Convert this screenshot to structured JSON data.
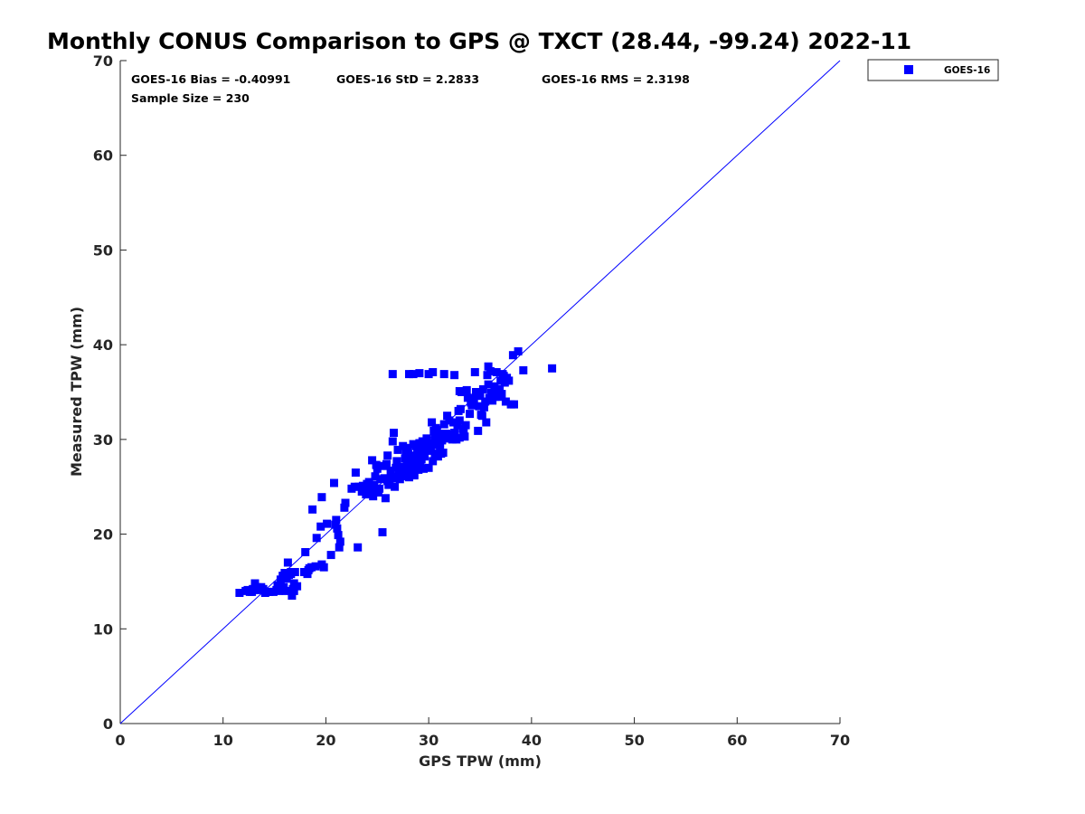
{
  "chart_data": {
    "type": "scatter",
    "title": "Monthly CONUS Comparison to GPS @ TXCT (28.44, -99.24) 2022-11",
    "xlabel": "GPS TPW (mm)",
    "ylabel": "Measured TPW (mm)",
    "xlim": [
      0,
      70
    ],
    "ylim": [
      0,
      70
    ],
    "xticks": [
      0,
      10,
      20,
      30,
      40,
      50,
      60,
      70
    ],
    "yticks": [
      0,
      10,
      20,
      30,
      40,
      50,
      60,
      70
    ],
    "grid": false,
    "legend_position": "outside-top-right",
    "colors": {
      "series": "#0000ff",
      "axis": "#262626"
    },
    "stats": {
      "bias": "GOES-16 Bias = -0.40991",
      "std": "GOES-16 StD = 2.2833",
      "rms": "GOES-16 RMS = 2.3198",
      "sample": "Sample Size = 230"
    },
    "reference_line": {
      "label": "",
      "x": [
        0,
        70
      ],
      "y": [
        0,
        70
      ]
    },
    "series": [
      {
        "name": "GOES-16",
        "marker": "square",
        "points": [
          [
            11.6,
            13.8
          ],
          [
            12.2,
            14.0
          ],
          [
            12.6,
            13.9
          ],
          [
            12.9,
            14.2
          ],
          [
            13.1,
            14.8
          ],
          [
            13.3,
            14.4
          ],
          [
            13.5,
            14.1
          ],
          [
            12.8,
            13.9
          ],
          [
            14.5,
            13.9
          ],
          [
            14.9,
            13.9
          ],
          [
            15.2,
            14.1
          ],
          [
            15.4,
            14.0
          ],
          [
            15.6,
            14.2
          ],
          [
            15.8,
            15.6
          ],
          [
            16.0,
            15.9
          ],
          [
            16.2,
            15.3
          ],
          [
            16.4,
            15.7
          ],
          [
            16.6,
            16.0
          ],
          [
            16.3,
            17.0
          ],
          [
            16.8,
            14.2
          ],
          [
            16.9,
            14.8
          ],
          [
            16.7,
            13.5
          ],
          [
            17.0,
            16.0
          ],
          [
            16.1,
            14.0
          ],
          [
            15.9,
            14.4
          ],
          [
            17.9,
            16.0
          ],
          [
            18.0,
            18.1
          ],
          [
            18.3,
            16.2
          ],
          [
            18.6,
            16.5
          ],
          [
            19.0,
            16.6
          ],
          [
            19.6,
            16.8
          ],
          [
            18.7,
            22.6
          ],
          [
            19.1,
            19.6
          ],
          [
            19.5,
            20.8
          ],
          [
            19.6,
            23.9
          ],
          [
            20.5,
            17.8
          ],
          [
            20.9,
            21.0
          ],
          [
            21.0,
            21.5
          ],
          [
            21.1,
            20.6
          ],
          [
            21.2,
            19.9
          ],
          [
            21.3,
            18.6
          ],
          [
            21.4,
            19.2
          ],
          [
            21.8,
            22.8
          ],
          [
            20.8,
            25.4
          ],
          [
            22.9,
            26.5
          ],
          [
            23.1,
            18.6
          ],
          [
            23.2,
            25.0
          ],
          [
            23.5,
            24.5
          ],
          [
            23.8,
            24.9
          ],
          [
            24.0,
            25.3
          ],
          [
            24.3,
            24.7
          ],
          [
            24.5,
            27.8
          ],
          [
            24.6,
            24.0
          ],
          [
            24.7,
            25.2
          ],
          [
            24.8,
            26.1
          ],
          [
            25.0,
            26.9
          ],
          [
            25.2,
            24.8
          ],
          [
            25.5,
            20.2
          ],
          [
            25.6,
            27.2
          ],
          [
            25.8,
            23.8
          ],
          [
            26.0,
            25.6
          ],
          [
            26.0,
            28.3
          ],
          [
            26.2,
            25.4
          ],
          [
            26.4,
            26.1
          ],
          [
            26.5,
            29.8
          ],
          [
            26.6,
            30.7
          ],
          [
            26.7,
            25.0
          ],
          [
            26.8,
            25.9
          ],
          [
            26.9,
            27.7
          ],
          [
            27.0,
            28.9
          ],
          [
            27.1,
            26.5
          ],
          [
            27.2,
            25.8
          ],
          [
            27.4,
            26.5
          ],
          [
            27.5,
            27.1
          ],
          [
            27.6,
            26.3
          ],
          [
            27.8,
            28.7
          ],
          [
            28.0,
            29.1
          ],
          [
            28.1,
            26.0
          ],
          [
            28.2,
            26.8
          ],
          [
            28.3,
            27.6
          ],
          [
            28.4,
            28.3
          ],
          [
            28.5,
            29.5
          ],
          [
            28.6,
            26.3
          ],
          [
            28.7,
            26.9
          ],
          [
            28.8,
            27.3
          ],
          [
            28.9,
            29.0
          ],
          [
            29.0,
            28.0
          ],
          [
            29.1,
            29.6
          ],
          [
            29.2,
            27.2
          ],
          [
            29.3,
            28.5
          ],
          [
            29.4,
            29.8
          ],
          [
            29.5,
            26.9
          ],
          [
            29.6,
            28.2
          ],
          [
            29.7,
            29.5
          ],
          [
            29.8,
            30.1
          ],
          [
            30.0,
            27.0
          ],
          [
            30.1,
            28.8
          ],
          [
            30.2,
            29.2
          ],
          [
            30.3,
            31.8
          ],
          [
            30.4,
            27.7
          ],
          [
            30.5,
            30.9
          ],
          [
            30.6,
            30.4
          ],
          [
            30.7,
            31.2
          ],
          [
            30.8,
            29.4
          ],
          [
            30.9,
            28.2
          ],
          [
            31.0,
            30.6
          ],
          [
            31.1,
            29.2
          ],
          [
            31.2,
            28.5
          ],
          [
            31.5,
            31.6
          ],
          [
            31.8,
            32.5
          ],
          [
            32.0,
            32.0
          ],
          [
            32.1,
            30.3
          ],
          [
            32.3,
            30.0
          ],
          [
            32.5,
            30.7
          ],
          [
            32.7,
            30.0
          ],
          [
            32.8,
            31.5
          ],
          [
            33.0,
            32.0
          ],
          [
            33.0,
            30.2
          ],
          [
            33.1,
            33.2
          ],
          [
            33.2,
            35.0
          ],
          [
            33.4,
            30.9
          ],
          [
            33.5,
            30.3
          ],
          [
            33.6,
            31.5
          ],
          [
            33.7,
            35.2
          ],
          [
            34.0,
            32.7
          ],
          [
            34.2,
            33.6
          ],
          [
            34.4,
            34.1
          ],
          [
            34.5,
            37.1
          ],
          [
            34.6,
            35.0
          ],
          [
            34.8,
            30.9
          ],
          [
            35.0,
            34.6
          ],
          [
            35.2,
            32.5
          ],
          [
            35.3,
            35.3
          ],
          [
            35.4,
            33.4
          ],
          [
            35.5,
            34.0
          ],
          [
            35.6,
            31.8
          ],
          [
            35.7,
            36.8
          ],
          [
            35.8,
            37.7
          ],
          [
            35.9,
            34.4
          ],
          [
            36.0,
            37.2
          ],
          [
            36.2,
            34.1
          ],
          [
            36.3,
            34.6
          ],
          [
            36.5,
            34.5
          ],
          [
            36.6,
            37.1
          ],
          [
            36.8,
            34.5
          ],
          [
            36.9,
            35.3
          ],
          [
            37.0,
            36.2
          ],
          [
            37.1,
            34.8
          ],
          [
            37.3,
            36.7
          ],
          [
            37.4,
            36.0
          ],
          [
            37.5,
            34.0
          ],
          [
            37.6,
            36.5
          ],
          [
            37.8,
            36.2
          ],
          [
            38.0,
            33.7
          ],
          [
            38.2,
            38.9
          ],
          [
            38.3,
            33.7
          ],
          [
            38.7,
            39.3
          ],
          [
            39.2,
            37.3
          ],
          [
            42.0,
            37.5
          ],
          [
            26.5,
            36.9
          ],
          [
            28.1,
            36.9
          ],
          [
            28.5,
            36.9
          ],
          [
            29.1,
            37.0
          ],
          [
            30.0,
            36.9
          ],
          [
            30.4,
            37.1
          ],
          [
            31.5,
            36.9
          ],
          [
            32.5,
            36.8
          ],
          [
            33.0,
            35.1
          ],
          [
            22.5,
            24.8
          ],
          [
            23.9,
            24.2
          ],
          [
            25.7,
            25.9
          ],
          [
            27.3,
            26.6
          ],
          [
            28.6,
            26.2
          ],
          [
            29.9,
            29.2
          ],
          [
            31.3,
            29.9
          ],
          [
            24.2,
            25.5
          ],
          [
            26.3,
            26.7
          ],
          [
            27.7,
            28.0
          ],
          [
            29.3,
            27.9
          ],
          [
            30.6,
            28.5
          ],
          [
            31.9,
            30.1
          ],
          [
            32.4,
            31.8
          ],
          [
            34.1,
            33.9
          ],
          [
            36.1,
            34.9
          ],
          [
            17.2,
            14.5
          ],
          [
            15.3,
            14.6
          ],
          [
            16.6,
            15.8
          ],
          [
            14.1,
            13.8
          ],
          [
            13.7,
            14.4
          ],
          [
            12.4,
            14.1
          ],
          [
            19.8,
            16.5
          ],
          [
            18.4,
            16.4
          ],
          [
            24.9,
            27.3
          ],
          [
            25.3,
            25.8
          ],
          [
            26.8,
            27.0
          ],
          [
            28.9,
            28.6
          ],
          [
            30.7,
            30.0
          ],
          [
            33.3,
            31.1
          ],
          [
            34.9,
            33.5
          ],
          [
            36.4,
            35.6
          ],
          [
            27.5,
            29.3
          ],
          [
            29.6,
            29.0
          ],
          [
            31.4,
            28.6
          ],
          [
            25.1,
            24.4
          ],
          [
            23.6,
            25.1
          ],
          [
            22.8,
            25.0
          ],
          [
            26.1,
            25.2
          ],
          [
            27.9,
            27.4
          ],
          [
            29.0,
            26.8
          ],
          [
            30.2,
            29.6
          ],
          [
            31.7,
            30.6
          ],
          [
            32.9,
            33.0
          ],
          [
            34.3,
            34.3
          ],
          [
            35.8,
            35.8
          ],
          [
            37.2,
            36.9
          ],
          [
            24.4,
            24.8
          ],
          [
            25.9,
            27.4
          ],
          [
            27.6,
            26.1
          ],
          [
            28.8,
            29.3
          ],
          [
            30.8,
            31.0
          ],
          [
            32.2,
            30.5
          ],
          [
            33.8,
            34.4
          ],
          [
            35.1,
            32.6
          ],
          [
            36.7,
            35.0
          ],
          [
            16.9,
            14.0
          ],
          [
            15.6,
            15.2
          ],
          [
            13.9,
            14.2
          ],
          [
            18.2,
            15.8
          ],
          [
            20.1,
            21.1
          ],
          [
            21.9,
            23.3
          ]
        ]
      }
    ]
  }
}
